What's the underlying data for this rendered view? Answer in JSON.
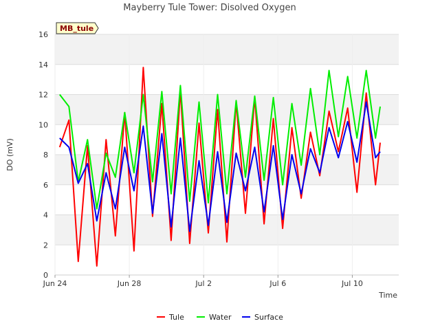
{
  "chart_data": {
    "type": "line",
    "title": "Mayberry Tule Tower: Disolved Oxygen",
    "xlabel": "Time",
    "ylabel": "DO (mV)",
    "badge": "MB_tule",
    "ylim": [
      0,
      16
    ],
    "yticks": [
      0,
      2,
      4,
      6,
      8,
      10,
      12,
      14,
      16
    ],
    "xlim": [
      "2023-06-24",
      "2023-07-12T12:00"
    ],
    "xticks": [
      {
        "date": "2023-06-24",
        "label": "Jun 24"
      },
      {
        "date": "2023-06-28",
        "label": "Jun 28"
      },
      {
        "date": "2023-07-02",
        "label": "Jul 2"
      },
      {
        "date": "2023-07-06",
        "label": "Jul 6"
      },
      {
        "date": "2023-07-10",
        "label": "Jul 10"
      }
    ],
    "grid": true,
    "legend_position": "bottom",
    "x": [
      "2023-06-24T06:00",
      "2023-06-24T18:00",
      "2023-06-25T06:00",
      "2023-06-25T18:00",
      "2023-06-26T06:00",
      "2023-06-26T18:00",
      "2023-06-27T06:00",
      "2023-06-27T18:00",
      "2023-06-28T06:00",
      "2023-06-28T18:00",
      "2023-06-29T06:00",
      "2023-06-29T18:00",
      "2023-06-30T06:00",
      "2023-06-30T18:00",
      "2023-07-01T06:00",
      "2023-07-01T18:00",
      "2023-07-02T06:00",
      "2023-07-02T18:00",
      "2023-07-03T06:00",
      "2023-07-03T18:00",
      "2023-07-04T06:00",
      "2023-07-04T18:00",
      "2023-07-05T06:00",
      "2023-07-05T18:00",
      "2023-07-06T06:00",
      "2023-07-06T18:00",
      "2023-07-07T06:00",
      "2023-07-07T18:00",
      "2023-07-08T06:00",
      "2023-07-08T18:00",
      "2023-07-09T06:00",
      "2023-07-09T18:00",
      "2023-07-10T06:00",
      "2023-07-10T18:00",
      "2023-07-11T06:00",
      "2023-07-11T12:00"
    ],
    "series": [
      {
        "name": "Tule",
        "color": "#ff0000",
        "values": [
          8.5,
          10.3,
          0.9,
          8.6,
          0.6,
          9.0,
          2.6,
          10.8,
          1.6,
          13.8,
          3.9,
          11.4,
          2.3,
          12.3,
          2.1,
          10.1,
          2.8,
          11.0,
          2.2,
          11.5,
          4.1,
          11.8,
          3.4,
          10.4,
          3.1,
          9.8,
          5.1,
          9.5,
          6.6,
          10.9,
          8.2,
          11.1,
          5.5,
          12.1,
          6.0,
          8.8
        ]
      },
      {
        "name": "Water",
        "color": "#00ee00",
        "values": [
          12.0,
          11.2,
          6.2,
          9.0,
          4.4,
          8.1,
          6.5,
          10.8,
          6.8,
          12.0,
          6.2,
          12.2,
          5.4,
          12.6,
          4.9,
          11.5,
          4.8,
          12.0,
          5.4,
          11.6,
          6.5,
          11.9,
          6.3,
          11.8,
          6.0,
          11.4,
          7.3,
          12.4,
          8.0,
          13.6,
          9.2,
          13.2,
          9.1,
          13.6,
          9.1,
          11.2
        ]
      },
      {
        "name": "Surface",
        "color": "#0000ee",
        "values": [
          9.1,
          8.5,
          6.1,
          7.4,
          3.6,
          6.8,
          4.4,
          8.5,
          5.6,
          9.9,
          4.1,
          9.4,
          3.2,
          9.1,
          2.9,
          7.6,
          3.3,
          8.2,
          3.5,
          8.1,
          5.6,
          8.5,
          4.2,
          8.6,
          3.7,
          8.0,
          5.4,
          8.4,
          6.8,
          9.8,
          7.8,
          10.2,
          7.5,
          11.5,
          7.8,
          8.2
        ]
      }
    ]
  }
}
